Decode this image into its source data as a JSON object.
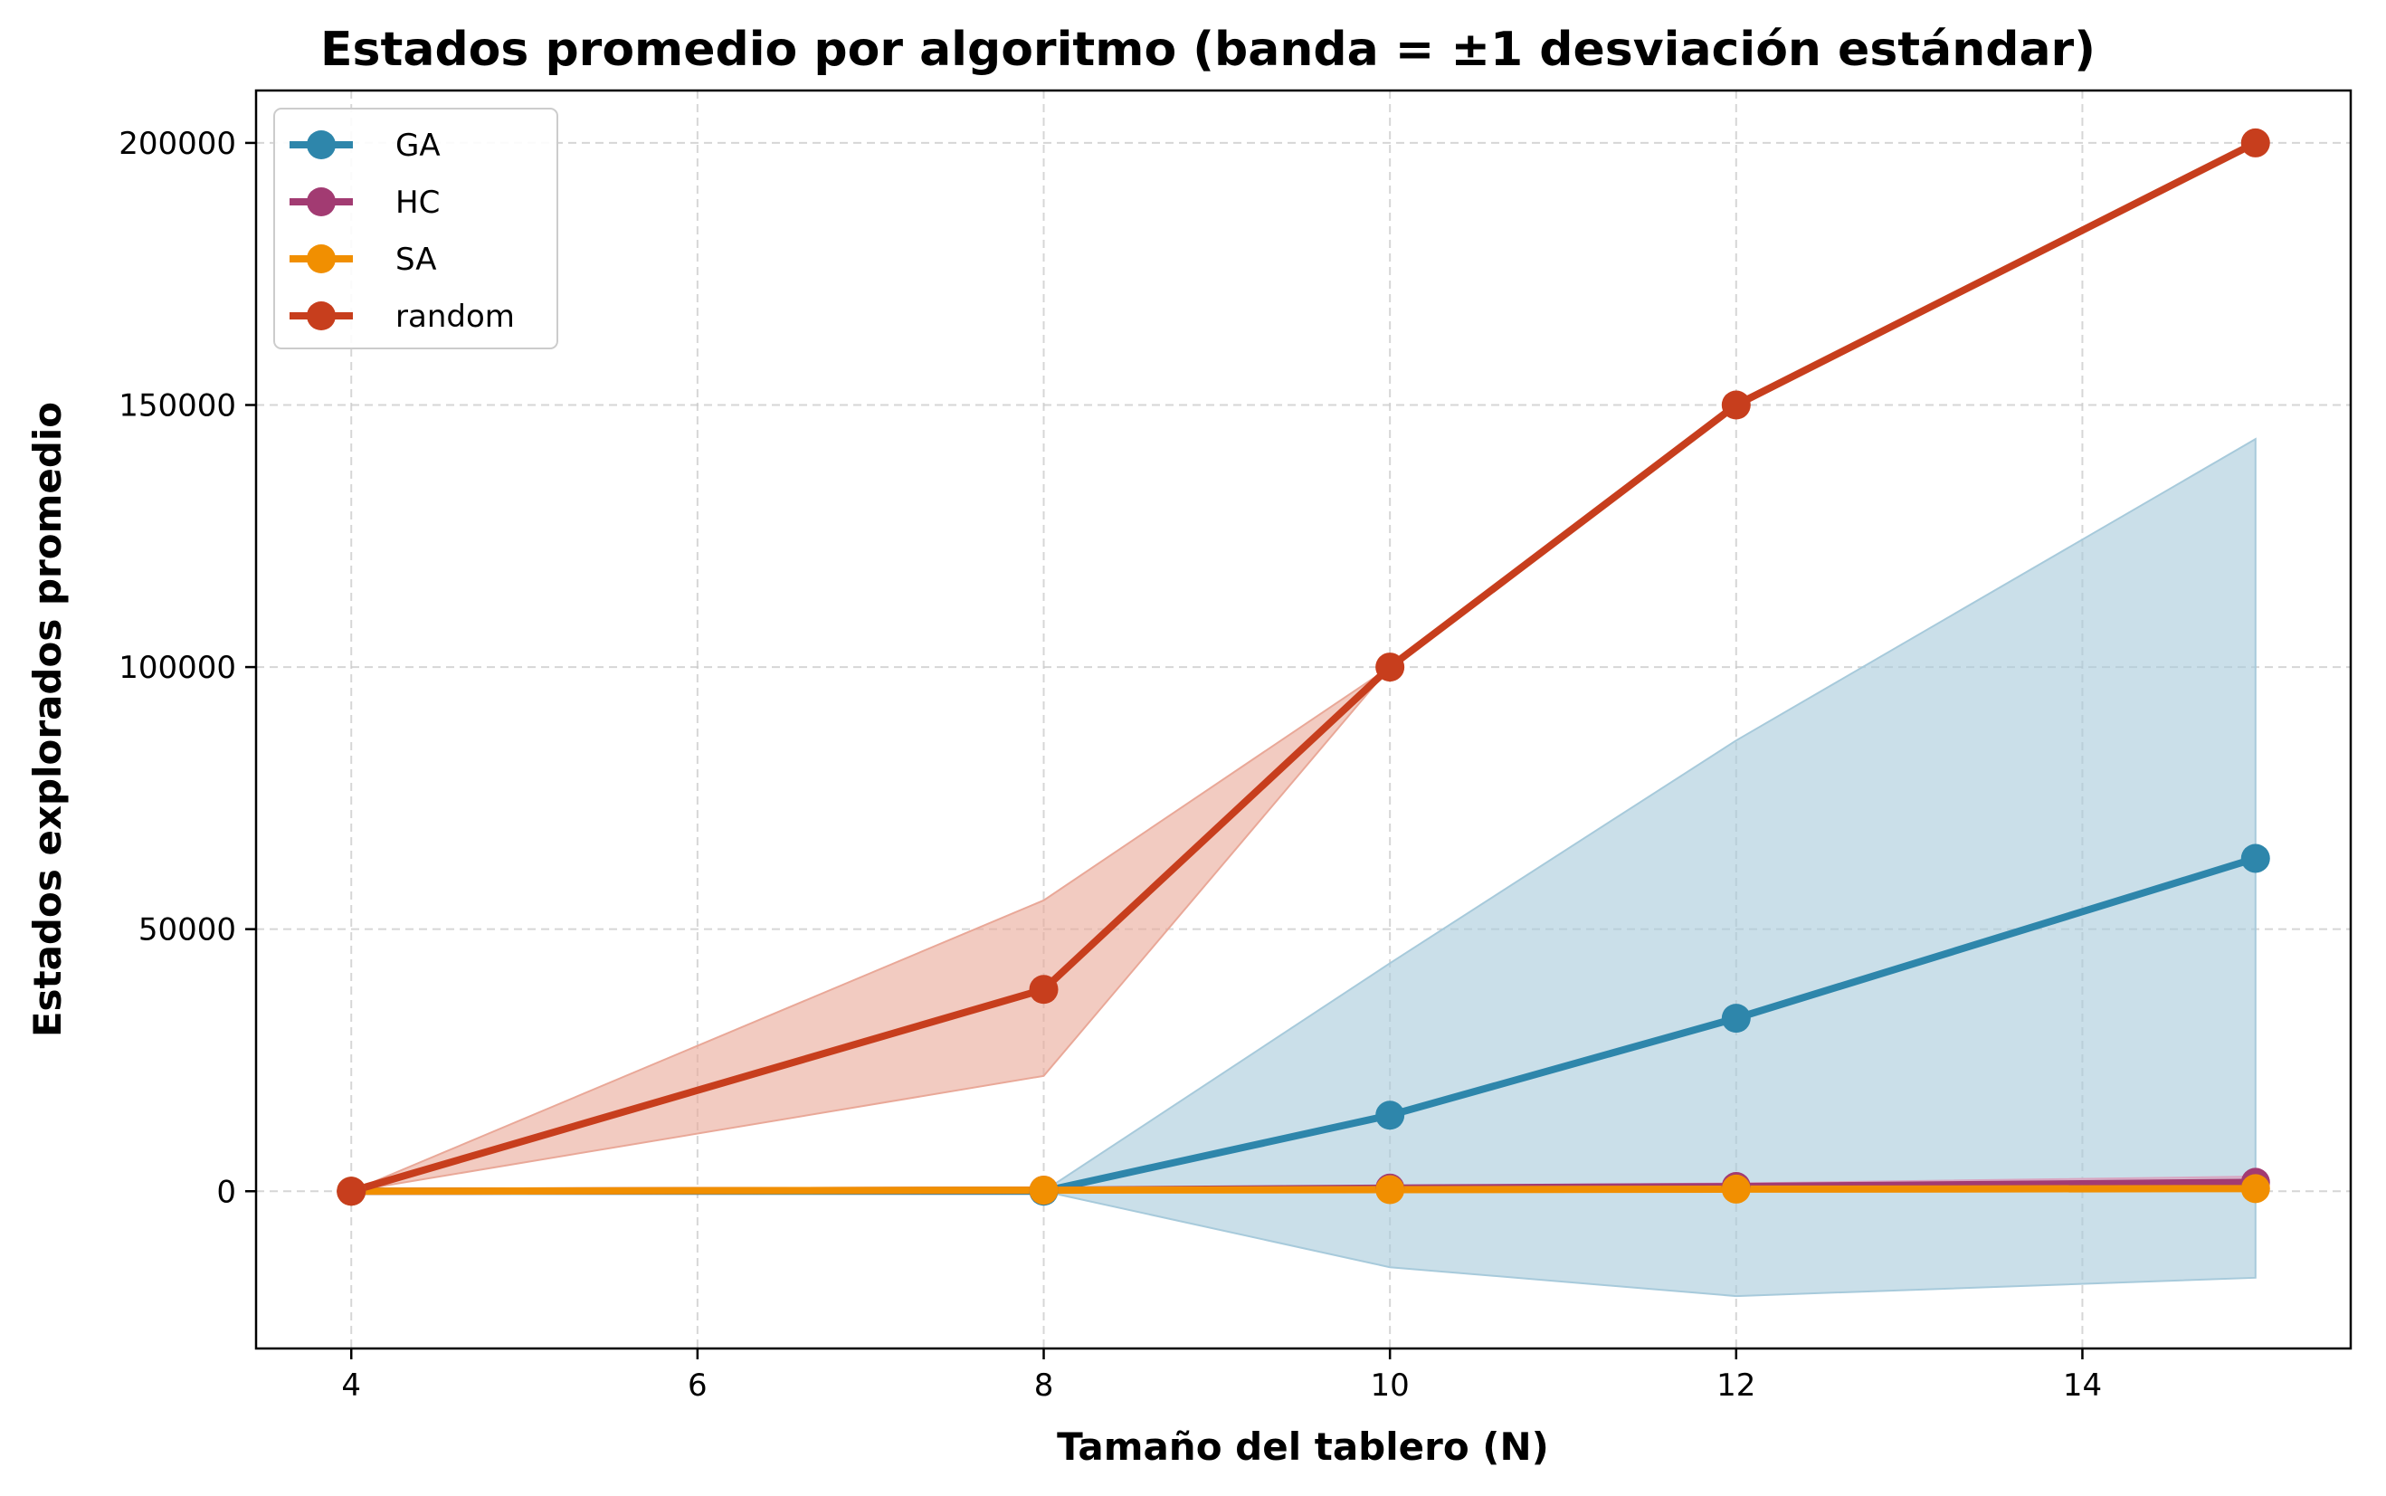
{
  "chart_data": {
    "type": "line",
    "title": "Estados promedio por algoritmo (banda = ±1 desviación estándar)",
    "xlabel": "Tamaño del tablero (N)",
    "ylabel": "Estados explorados promedio",
    "xlim": [
      3.45,
      15.55
    ],
    "ylim": [
      -30000,
      210000
    ],
    "xticks": [
      4,
      6,
      8,
      10,
      12,
      14
    ],
    "yticks": [
      0,
      50000,
      100000,
      150000,
      200000
    ],
    "grid": true,
    "legend_position": "top-left",
    "x": [
      4,
      8,
      10,
      12,
      15
    ],
    "series": [
      {
        "name": "GA",
        "color": "#2E86AB",
        "band_color": "#a7cadb",
        "values": [
          0,
          0,
          14500,
          33000,
          63500
        ],
        "band_low": [
          0,
          0,
          -14500,
          -20000,
          -16500
        ],
        "band_high": [
          0,
          0,
          43500,
          86000,
          143500
        ]
      },
      {
        "name": "HC",
        "color": "#A23B72",
        "band_color": "#d9a6c2",
        "values": [
          0,
          200,
          600,
          900,
          1700
        ],
        "band_low": [
          0,
          0,
          200,
          300,
          600
        ],
        "band_high": [
          0,
          400,
          1000,
          1500,
          2800
        ]
      },
      {
        "name": "SA",
        "color": "#F18F01",
        "band_color": "#f8c98c",
        "values": [
          0,
          200,
          300,
          400,
          500
        ],
        "band_low": [
          0,
          100,
          150,
          200,
          250
        ],
        "band_high": [
          0,
          300,
          450,
          600,
          750
        ]
      },
      {
        "name": "random",
        "color": "#C73E1D",
        "band_color": "#e9a898",
        "values": [
          0,
          38500,
          100000,
          150000,
          200000
        ],
        "band_low": [
          0,
          22000,
          100000,
          150000,
          200000
        ],
        "band_high": [
          0,
          55500,
          100000,
          150000,
          200000
        ]
      }
    ]
  }
}
